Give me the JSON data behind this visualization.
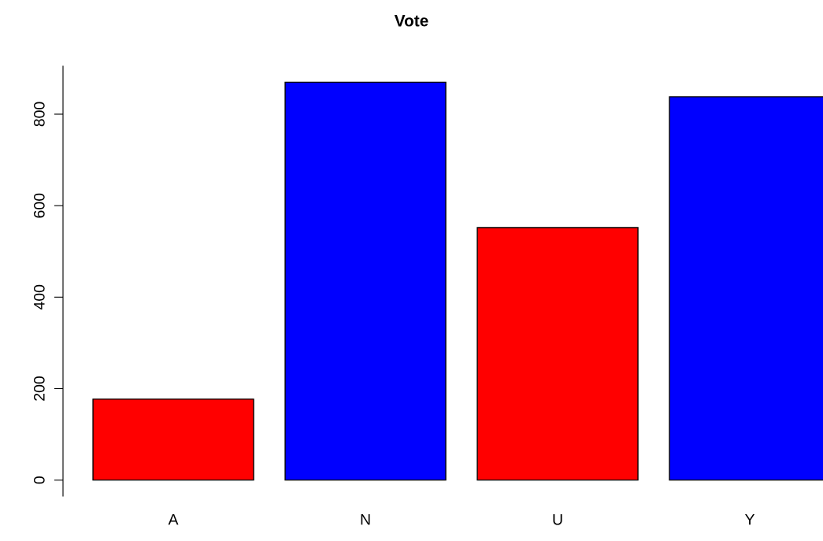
{
  "chart_data": {
    "type": "bar",
    "title": "Vote",
    "categories": [
      "A",
      "N",
      "U",
      "Y"
    ],
    "values": [
      177,
      870,
      552,
      838
    ],
    "colors": [
      "#ff0000",
      "#0000ff",
      "#ff0000",
      "#0000ff"
    ],
    "ylim": [
      -35,
      905
    ],
    "yticks": [
      0,
      200,
      400,
      600,
      800
    ],
    "grid": false,
    "legend": false
  }
}
